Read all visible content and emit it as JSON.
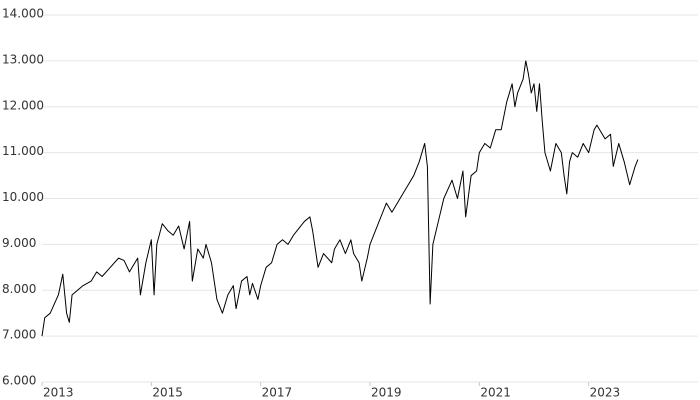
{
  "chart_data": {
    "type": "line",
    "x": [
      2013.0,
      2013.05,
      2013.15,
      2013.3,
      2013.38,
      2013.45,
      2013.5,
      2013.55,
      2013.75,
      2013.9,
      2014.0,
      2014.1,
      2014.25,
      2014.4,
      2014.5,
      2014.6,
      2014.75,
      2014.8,
      2014.9,
      2015.0,
      2015.05,
      2015.1,
      2015.2,
      2015.3,
      2015.4,
      2015.5,
      2015.6,
      2015.7,
      2015.75,
      2015.85,
      2015.95,
      2016.0,
      2016.1,
      2016.2,
      2016.3,
      2016.4,
      2016.5,
      2016.55,
      2016.65,
      2016.75,
      2016.8,
      2016.85,
      2016.95,
      2017.0,
      2017.1,
      2017.2,
      2017.3,
      2017.4,
      2017.5,
      2017.6,
      2017.7,
      2017.8,
      2017.9,
      2017.95,
      2018.0,
      2018.05,
      2018.15,
      2018.3,
      2018.35,
      2018.45,
      2018.55,
      2018.65,
      2018.7,
      2018.8,
      2018.85,
      2018.95,
      2019.0,
      2019.1,
      2019.2,
      2019.3,
      2019.4,
      2019.5,
      2019.6,
      2019.7,
      2019.8,
      2019.9,
      2020.0,
      2020.05,
      2020.1,
      2020.15,
      2020.25,
      2020.35,
      2020.5,
      2020.6,
      2020.7,
      2020.75,
      2020.85,
      2020.95,
      2021.0,
      2021.1,
      2021.2,
      2021.3,
      2021.4,
      2021.5,
      2021.6,
      2021.65,
      2021.7,
      2021.8,
      2021.85,
      2021.9,
      2021.95,
      2022.0,
      2022.05,
      2022.1,
      2022.15,
      2022.2,
      2022.3,
      2022.4,
      2022.5,
      2022.55,
      2022.6,
      2022.65,
      2022.7,
      2022.8,
      2022.9,
      2023.0,
      2023.1,
      2023.15,
      2023.3,
      2023.4,
      2023.45,
      2023.55,
      2023.65,
      2023.75,
      2023.85,
      2023.9
    ],
    "series": [
      {
        "color": "#000000",
        "values": [
          7000,
          7400,
          7500,
          7900,
          8350,
          7500,
          7300,
          7900,
          8100,
          8200,
          8400,
          8300,
          8500,
          8700,
          8650,
          8400,
          8700,
          7900,
          8600,
          9100,
          7900,
          9000,
          9450,
          9300,
          9200,
          9400,
          8900,
          9500,
          8200,
          8900,
          8700,
          9000,
          8600,
          7800,
          7500,
          7900,
          8100,
          7600,
          8200,
          8300,
          7900,
          8150,
          7800,
          8100,
          8500,
          8600,
          9000,
          9100,
          9000,
          9200,
          9350,
          9500,
          9600,
          9300,
          8900,
          8500,
          8800,
          8600,
          8900,
          9100,
          8800,
          9100,
          8800,
          8600,
          8200,
          8700,
          9000,
          9300,
          9600,
          9900,
          9700,
          9900,
          10100,
          10300,
          10500,
          10800,
          11200,
          10700,
          7700,
          9000,
          9500,
          10000,
          10400,
          10000,
          10600,
          9600,
          10500,
          10600,
          11000,
          11200,
          11100,
          11500,
          11500,
          12100,
          12500,
          12000,
          12300,
          12600,
          13000,
          12700,
          12300,
          12500,
          11900,
          12500,
          11700,
          11000,
          10600,
          11200,
          11000,
          10500,
          10100,
          10800,
          11000,
          10900,
          11200,
          11000,
          11500,
          11600,
          11300,
          11400,
          10700,
          11200,
          10800,
          10300,
          10700,
          10850
        ]
      }
    ],
    "xlim": [
      2013,
      2025
    ],
    "xticks": [
      2013,
      2015,
      2017,
      2019,
      2021,
      2023
    ],
    "ylim": [
      6000,
      14000
    ],
    "yticks": [
      {
        "value": 6000,
        "label": "6.000"
      },
      {
        "value": 7000,
        "label": "7.000"
      },
      {
        "value": 8000,
        "label": "8.000"
      },
      {
        "value": 9000,
        "label": "9.000"
      },
      {
        "value": 10000,
        "label": "10.000"
      },
      {
        "value": 11000,
        "label": "11.000"
      },
      {
        "value": 12000,
        "label": "12.000"
      },
      {
        "value": 13000,
        "label": "13.000"
      },
      {
        "value": 14000,
        "label": "14.000"
      }
    ],
    "grid": true
  }
}
